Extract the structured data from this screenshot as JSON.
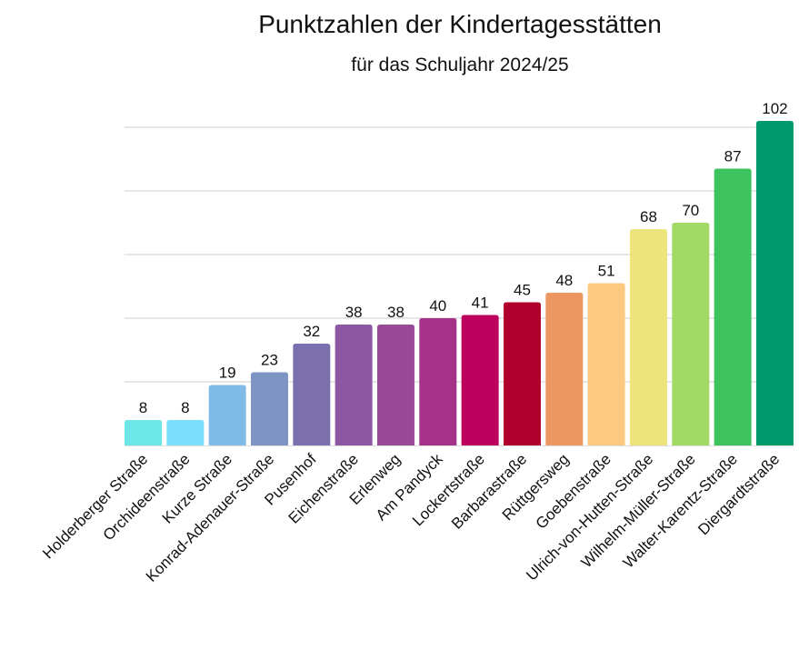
{
  "chart_data": {
    "type": "bar",
    "title": "Punktzahlen der Kindertagesstätten",
    "subtitle": "für das Schuljahr 2024/25",
    "xlabel": "",
    "ylabel": "",
    "ylim": [
      0,
      102
    ],
    "grid": true,
    "gridline_step": 20,
    "legend": "none",
    "categories": [
      "Holderberger Straße",
      "Orchideenstraße",
      "Kurze Straße",
      "Konrad-Adenauer-Straße",
      "Pusenhof",
      "Eichenstraße",
      "Erlenweg",
      "Am Pandyck",
      "Lockertstraße",
      "Barbarastraße",
      "Rüttgersweg",
      "Goebenstraße",
      "Ulrich-von-Hutten-Straße",
      "Wilhelm-Müller-Straße",
      "Walter-Karentz-Straße",
      "Diergardtstraße"
    ],
    "values": [
      8,
      8,
      19,
      23,
      32,
      38,
      38,
      40,
      41,
      45,
      48,
      51,
      68,
      70,
      87,
      102
    ],
    "colors": [
      "#6ce6e6",
      "#7ae0fc",
      "#80bbe8",
      "#7e94c4",
      "#7b70ad",
      "#8c57a3",
      "#984a99",
      "#a43289",
      "#bb005d",
      "#b0002c",
      "#ec9661",
      "#fdc980",
      "#ede47c",
      "#a3da66",
      "#3dc35e",
      "#00996b"
    ]
  }
}
